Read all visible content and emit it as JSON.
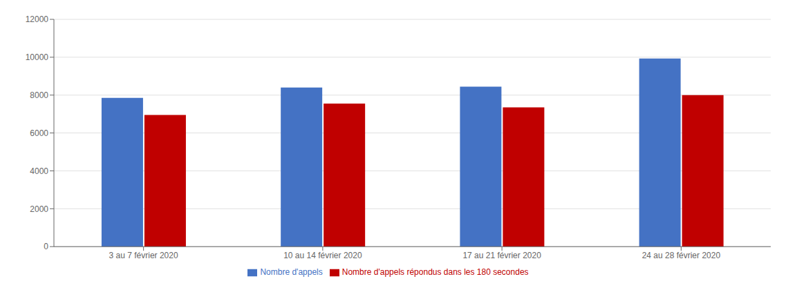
{
  "chart_data": {
    "type": "bar",
    "categories": [
      "3 au 7 février 2020",
      "10 au 14 février 2020",
      "17 au 21 février 2020",
      "24 au 28 février 2020"
    ],
    "series": [
      {
        "name": "Nombre d'appels",
        "color": "#4472C4",
        "values": [
          7850,
          8400,
          8450,
          9930
        ]
      },
      {
        "name": "Nombre d'appels répondus dans les 180 secondes",
        "color": "#C00000",
        "values": [
          6950,
          7550,
          7350,
          8000
        ]
      }
    ],
    "ylim": [
      0,
      12000
    ],
    "yticks": [
      0,
      2000,
      4000,
      6000,
      8000,
      10000,
      12000
    ],
    "grid": true,
    "legend": "bottom"
  }
}
